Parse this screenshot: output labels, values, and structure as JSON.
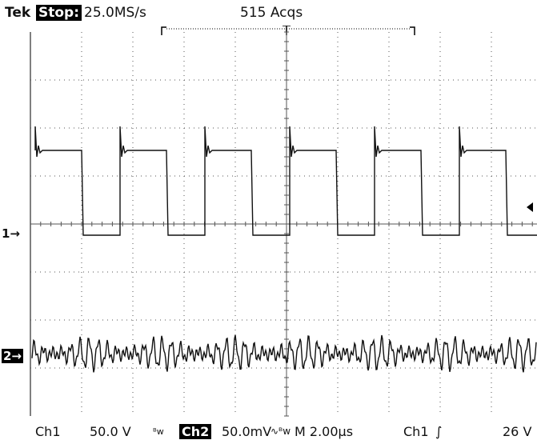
{
  "header": {
    "brand": "Tek",
    "state": "Stop:",
    "sample_rate": "25.0MS/s",
    "acquisitions": "515 Acqs"
  },
  "markers": {
    "ch1": "1→",
    "ch2": "2→"
  },
  "footer": {
    "ch1_label": "Ch1",
    "ch1_scale": "50.0 V",
    "ch1_bw": "ᴮᴡ",
    "ch2_label": "Ch2",
    "ch2_scale": "50.0mV",
    "ch2_bw": "∿ᴮᴡ",
    "timebase": "M 2.00µs",
    "trigger_source": "Ch1",
    "trigger_slope": "∫",
    "trigger_level": "26 V"
  },
  "colors": {
    "trace": "#111111",
    "grid": "#555555",
    "background": "#ffffff"
  }
}
